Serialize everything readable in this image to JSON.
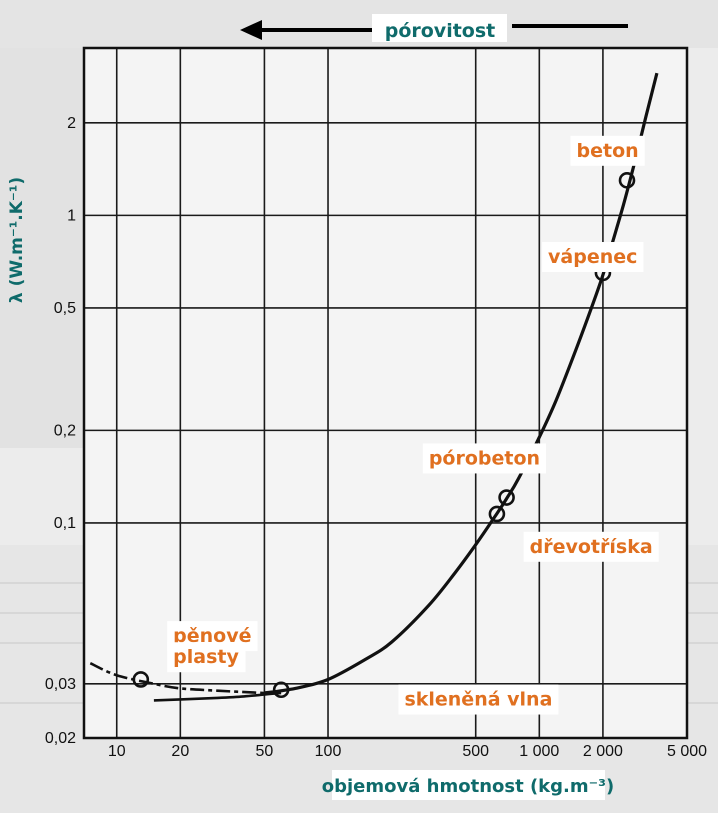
{
  "chart_data": {
    "type": "line",
    "title": "",
    "xlabel": "objemová hmotnost (kg.m⁻³)",
    "ylabel": "λ (W.m⁻¹.K⁻¹)",
    "x_scale": "log",
    "y_scale": "log",
    "xlim": [
      7,
      5000
    ],
    "ylim": [
      0.02,
      3.5
    ],
    "grid": true,
    "porosity_label": "pórovitost",
    "x_ticks": [
      {
        "value": 10,
        "label": "10"
      },
      {
        "value": 20,
        "label": "20"
      },
      {
        "value": 50,
        "label": "50"
      },
      {
        "value": 100,
        "label": "100"
      },
      {
        "value": 500,
        "label": "500"
      },
      {
        "value": 1000,
        "label": "1 000"
      },
      {
        "value": 2000,
        "label": "2 000"
      },
      {
        "value": 5000,
        "label": "5 000"
      }
    ],
    "y_ticks": [
      {
        "value": 0.02,
        "label": "0,02"
      },
      {
        "value": 0.03,
        "label": "0,03"
      },
      {
        "value": 0.1,
        "label": "0,1"
      },
      {
        "value": 0.2,
        "label": "0,2"
      },
      {
        "value": 0.5,
        "label": "0,5"
      },
      {
        "value": 1,
        "label": "1"
      },
      {
        "value": 2,
        "label": "2"
      }
    ],
    "curve": {
      "x": [
        50,
        70,
        100,
        150,
        200,
        300,
        400,
        500,
        600,
        700,
        800,
        1000,
        1200,
        1500,
        1800,
        2000,
        2200,
        2500,
        2800,
        3200,
        3600
      ],
      "y": [
        0.028,
        0.029,
        0.031,
        0.036,
        0.041,
        0.054,
        0.069,
        0.085,
        0.102,
        0.12,
        0.14,
        0.19,
        0.25,
        0.37,
        0.52,
        0.64,
        0.8,
        1.08,
        1.45,
        2.1,
        2.9
      ]
    },
    "foam_curve": {
      "x": [
        7.5,
        10,
        15,
        20,
        30,
        50
      ],
      "y": [
        0.035,
        0.032,
        0.03,
        0.029,
        0.0285,
        0.028
      ]
    },
    "lower_curve": {
      "x": [
        15,
        20,
        30,
        40,
        50,
        60
      ],
      "y": [
        0.0265,
        0.0267,
        0.027,
        0.0273,
        0.0277,
        0.028
      ]
    },
    "markers": [
      {
        "x": 13,
        "y": 0.031
      },
      {
        "x": 60,
        "y": 0.0287
      },
      {
        "x": 630,
        "y": 0.107
      },
      {
        "x": 700,
        "y": 0.121
      },
      {
        "x": 2000,
        "y": 0.65
      },
      {
        "x": 2600,
        "y": 1.3
      }
    ],
    "annotations": [
      {
        "text": "beton",
        "x": 1500,
        "y": 1.55
      },
      {
        "text": "vápenec",
        "x": 1100,
        "y": 0.7
      },
      {
        "text": "pórobeton",
        "x": 300,
        "y": 0.155
      },
      {
        "text": "dřevotříska",
        "x": 900,
        "y": 0.08
      },
      {
        "text": "pěnové",
        "x": 18.5,
        "y": 0.041
      },
      {
        "text": "plasty",
        "x": 18.5,
        "y": 0.035
      },
      {
        "text": "skleněná vlna",
        "x": 230,
        "y": 0.0255
      }
    ]
  }
}
